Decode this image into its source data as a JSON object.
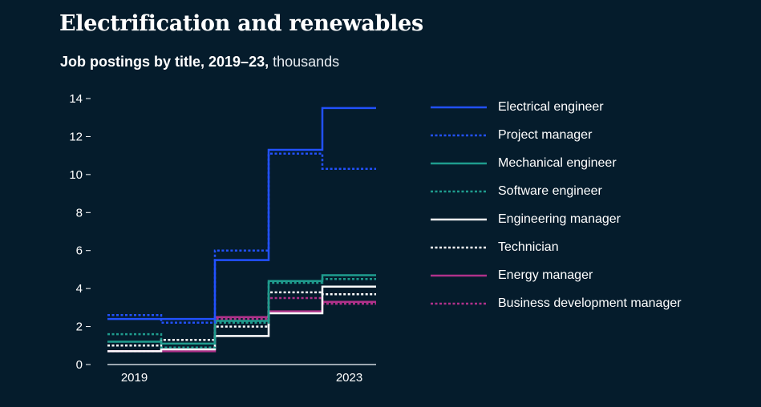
{
  "title": "Electrification and renewables",
  "subtitle_bold": "Job postings by title, 2019–23,",
  "subtitle_light": "thousands",
  "colors": {
    "background": "#051c2c",
    "blue": "#2251ff",
    "teal": "#1f9c8e",
    "white": "#ffffff",
    "magenta": "#b0318a"
  },
  "chart_data": {
    "type": "line",
    "step": true,
    "title": "Electrification and renewables",
    "subtitle": "Job postings by title, 2019–23, thousands",
    "x": [
      2019,
      2020,
      2021,
      2022,
      2023
    ],
    "x_tick_labels": [
      "2019",
      "2023"
    ],
    "ylabel": "thousands",
    "ylim": [
      0,
      14
    ],
    "y_ticks": [
      0,
      2,
      4,
      6,
      8,
      10,
      12,
      14
    ],
    "legend_position": "right",
    "series": [
      {
        "name": "Electrical engineer",
        "color": "#2251ff",
        "style": "solid",
        "values": [
          2.4,
          2.4,
          5.5,
          11.3,
          13.5
        ]
      },
      {
        "name": "Project manager",
        "color": "#2251ff",
        "style": "dotted",
        "values": [
          2.6,
          2.2,
          6.0,
          11.1,
          10.3
        ]
      },
      {
        "name": "Mechanical engineer",
        "color": "#1f9c8e",
        "style": "solid",
        "values": [
          1.2,
          1.1,
          2.3,
          4.4,
          4.7
        ]
      },
      {
        "name": "Software engineer",
        "color": "#1f9c8e",
        "style": "dotted",
        "values": [
          1.6,
          0.9,
          2.2,
          4.3,
          4.5
        ]
      },
      {
        "name": "Engineering manager",
        "color": "#ffffff",
        "style": "solid",
        "values": [
          0.7,
          0.8,
          1.5,
          2.7,
          4.1
        ]
      },
      {
        "name": "Technician",
        "color": "#ffffff",
        "style": "dotted",
        "values": [
          1.0,
          1.3,
          2.0,
          3.8,
          3.7
        ]
      },
      {
        "name": "Energy manager",
        "color": "#b0318a",
        "style": "solid",
        "values": [
          0.7,
          0.7,
          2.5,
          2.8,
          3.3
        ]
      },
      {
        "name": "Business development manager",
        "color": "#b0318a",
        "style": "dotted",
        "values": [
          0.7,
          0.8,
          2.4,
          3.5,
          3.2
        ]
      }
    ]
  }
}
